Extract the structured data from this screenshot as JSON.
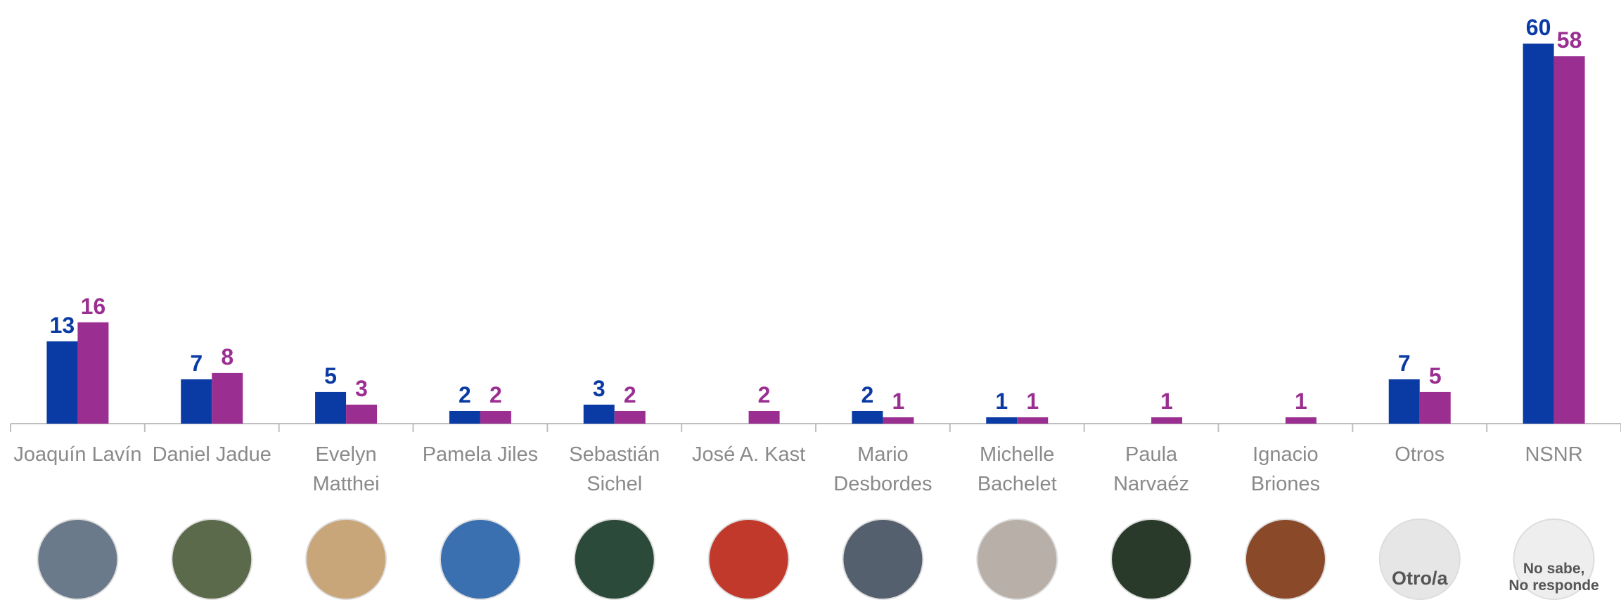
{
  "chart_data": {
    "type": "bar",
    "categories": [
      "Joaquín Lavín",
      "Daniel Jadue",
      "Evelyn\nMatthei",
      "Pamela Jiles",
      "Sebastián\nSichel",
      "José A. Kast",
      "Mario\nDesbordes",
      "Michelle\nBachelet",
      "Paula\nNarvaéz",
      "Ignacio\nBriones",
      "Otros",
      "NSNR"
    ],
    "series": [
      {
        "color": "#0a3aa3",
        "values": [
          13,
          7,
          5,
          2,
          3,
          null,
          2,
          1,
          null,
          null,
          7,
          60
        ]
      },
      {
        "color": "#9b2f91",
        "values": [
          16,
          8,
          3,
          2,
          2,
          2,
          1,
          1,
          1,
          1,
          5,
          58
        ]
      }
    ],
    "ylim": [
      0,
      66
    ],
    "avatar_labels": [
      null,
      null,
      null,
      null,
      null,
      null,
      null,
      null,
      null,
      null,
      "Otro/a",
      "No sabe,\nNo responde"
    ]
  }
}
